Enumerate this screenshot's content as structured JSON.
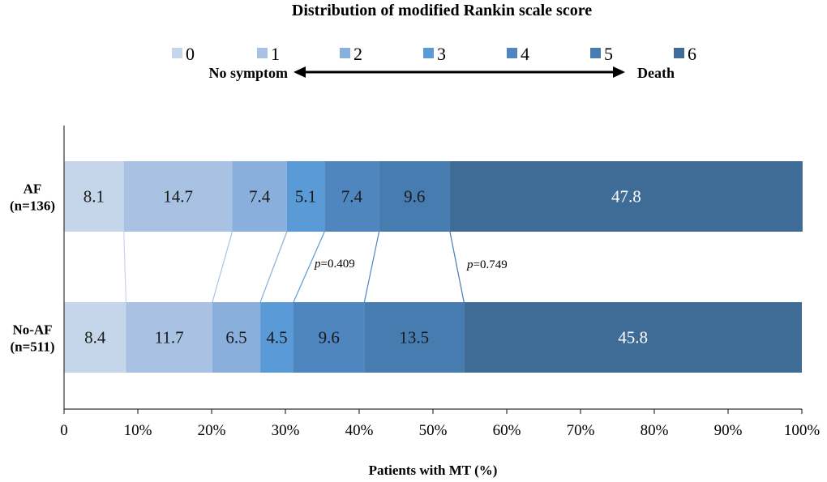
{
  "chart_data": {
    "type": "stacked-bar-horizontal",
    "title": "Distribution of modified Rankin scale score",
    "xlabel": "Patients with MT (%)",
    "xlim": [
      0,
      100
    ],
    "x_ticks": [
      "0",
      "10%",
      "20%",
      "30%",
      "40%",
      "50%",
      "60%",
      "70%",
      "80%",
      "90%",
      "100%"
    ],
    "legend": {
      "categories": [
        "0",
        "1",
        "2",
        "3",
        "4",
        "5",
        "6"
      ],
      "left_label": "No symptom",
      "right_label": "Death"
    },
    "colors": [
      "#c6d6ea",
      "#a9c1e3",
      "#8aafdc",
      "#5a9ad6",
      "#4f86c0",
      "#467cb0",
      "#3f6b97"
    ],
    "label_colors": [
      "#1a1a1a",
      "#1a1a1a",
      "#1a1a1a",
      "#1a1a1a",
      "#1a1a1a",
      "#1a1a1a",
      "#ffffff"
    ],
    "series": [
      {
        "name": "AF",
        "sub": "(n=136)",
        "values": [
          8.1,
          14.7,
          7.4,
          5.1,
          7.4,
          9.6,
          47.8
        ]
      },
      {
        "name": "No-AF",
        "sub": "(n=511)",
        "values": [
          8.4,
          11.7,
          6.5,
          4.5,
          9.6,
          13.5,
          45.8
        ]
      }
    ],
    "annotations": [
      {
        "italic": "p",
        "text": "=0.409"
      },
      {
        "italic": "p",
        "text": "=0.749"
      }
    ]
  }
}
